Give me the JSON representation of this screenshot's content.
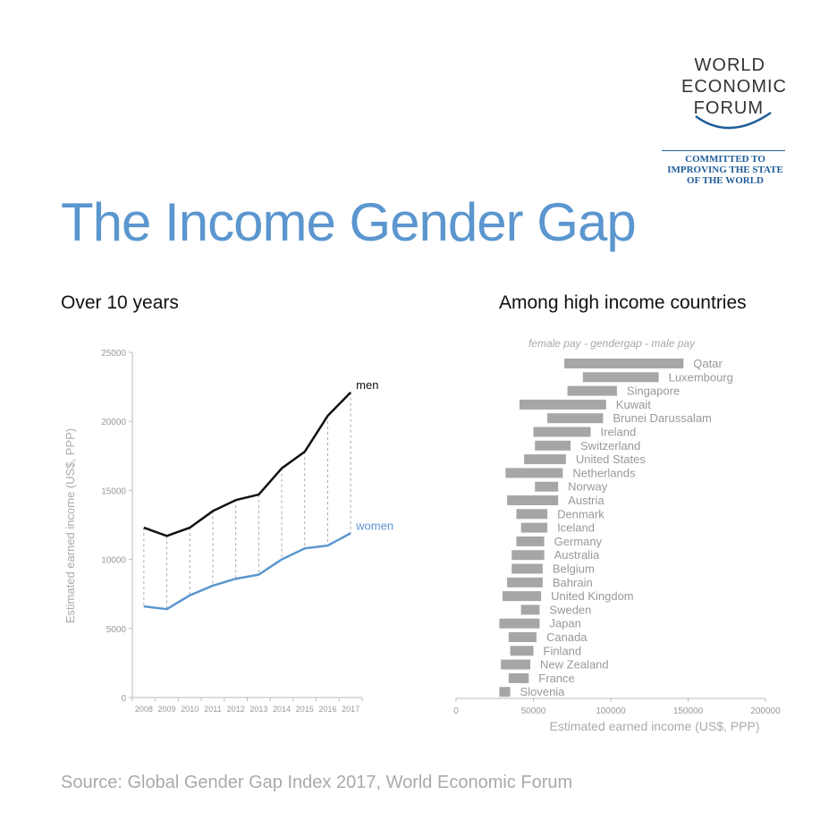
{
  "title": "The Income Gender Gap",
  "logo": {
    "lines": [
      "WORLD",
      "ECONOMIC",
      "FORUM"
    ],
    "tagline": [
      "COMMITTED TO",
      "IMPROVING THE STATE",
      "OF THE WORLD"
    ],
    "color": "#1f5c99"
  },
  "source": "Source:  Global Gender Gap Index 2017, World Economic Forum",
  "chart_data": [
    {
      "type": "line",
      "title": "Over 10 years",
      "ylabel": "Estimated earned income (US$, PPP)",
      "xlabel": "",
      "x": [
        "2008",
        "2009",
        "2010",
        "2011",
        "2012",
        "2013",
        "2014",
        "2015",
        "2016",
        "2017"
      ],
      "ylim": [
        0,
        25000
      ],
      "yticks": [
        0,
        5000,
        10000,
        15000,
        20000,
        25000
      ],
      "series": [
        {
          "name": "men",
          "color": "#111111",
          "values": [
            12300,
            11700,
            12300,
            13500,
            14300,
            14700,
            16600,
            17800,
            20400,
            22100
          ]
        },
        {
          "name": "women",
          "color": "#5b96cf",
          "values": [
            6600,
            6400,
            7400,
            8100,
            8600,
            8900,
            10000,
            10800,
            11000,
            11900
          ]
        }
      ],
      "grid": false
    },
    {
      "type": "bar",
      "orientation": "horizontal-range",
      "title": "Among high income countries",
      "annotation": "female pay - gendergap -  male pay",
      "xlabel": "Estimated earned income (US$, PPP)",
      "xlim": [
        0,
        200000
      ],
      "xticks": [
        0,
        50000,
        100000,
        150000,
        200000
      ],
      "bar_color": "#a6a6a6",
      "categories": [
        "Qatar",
        "Luxembourg",
        "Singapore",
        "Kuwait",
        "Brunei Darussalam",
        "Ireland",
        "Switzerland",
        "United States",
        "Netherlands",
        "Norway",
        "Austria",
        "Denmark",
        "Iceland",
        "Germany",
        "Australia",
        "Belgium",
        "Bahrain",
        "United Kingdom",
        "Sweden",
        "Japan",
        "Canada",
        "Finland",
        "New Zealand",
        "France",
        "Slovenia"
      ],
      "female": [
        70000,
        82000,
        72000,
        41000,
        59000,
        50000,
        51000,
        44000,
        32000,
        51000,
        33000,
        39000,
        42000,
        39000,
        36000,
        36000,
        33000,
        30000,
        42000,
        28000,
        34000,
        35000,
        29000,
        34000,
        28000
      ],
      "male": [
        147000,
        131000,
        104000,
        97000,
        95000,
        87000,
        74000,
        71000,
        69000,
        66000,
        66000,
        59000,
        59000,
        57000,
        57000,
        56000,
        56000,
        55000,
        54000,
        54000,
        52000,
        50000,
        48000,
        47000,
        35000
      ]
    }
  ]
}
